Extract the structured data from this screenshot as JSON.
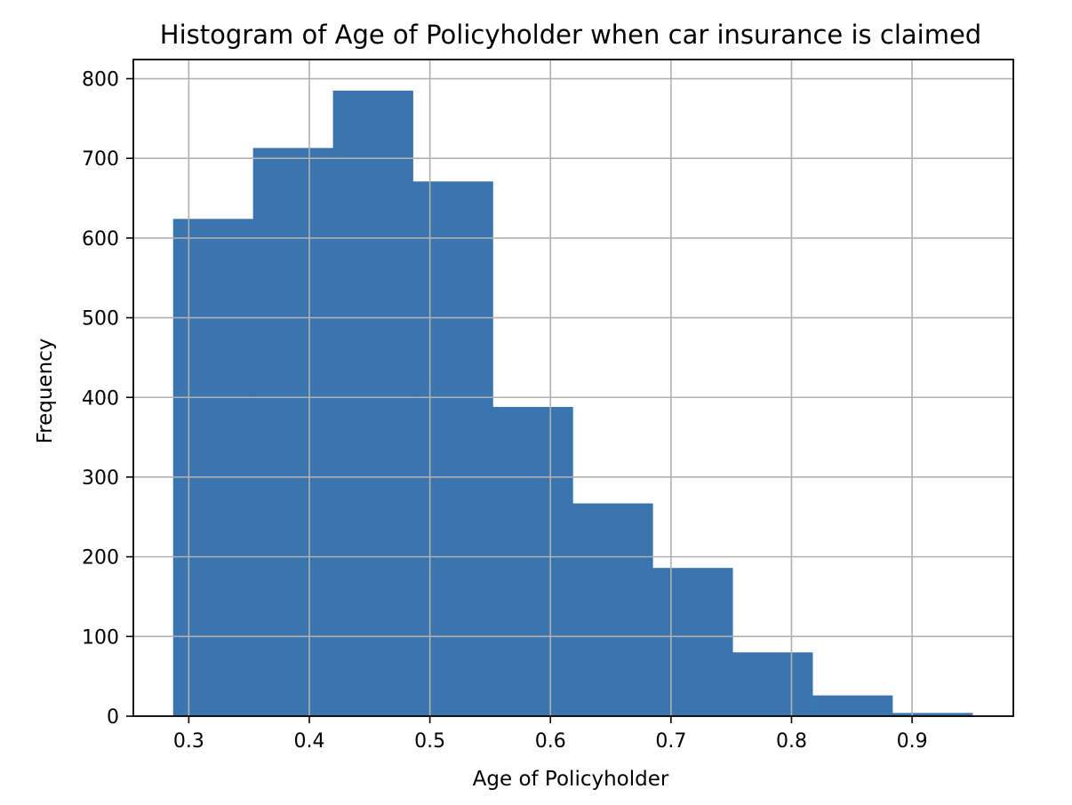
{
  "chart_data": {
    "type": "bar",
    "title": "Histogram of Age of Policyholder when car insurance is claimed",
    "xlabel": "Age of Policyholder",
    "ylabel": "Frequency",
    "xlim": [
      0.254,
      0.984
    ],
    "ylim": [
      0,
      824
    ],
    "xticks": [
      0.3,
      0.4,
      0.5,
      0.6,
      0.7,
      0.8,
      0.9
    ],
    "xtick_labels": [
      "0.3",
      "0.4",
      "0.5",
      "0.6",
      "0.7",
      "0.8",
      "0.9"
    ],
    "yticks": [
      0,
      100,
      200,
      300,
      400,
      500,
      600,
      700,
      800
    ],
    "ytick_labels": [
      "0",
      "100",
      "200",
      "300",
      "400",
      "500",
      "600",
      "700",
      "800"
    ],
    "grid": true,
    "bin_edges": [
      0.287,
      0.3533,
      0.4196,
      0.4859,
      0.5522,
      0.6185,
      0.6848,
      0.7511,
      0.8174,
      0.8837,
      0.95
    ],
    "values": [
      624,
      713,
      785,
      671,
      388,
      267,
      186,
      80,
      26,
      4
    ],
    "colors": {
      "bar": "#3a75af",
      "grid": "#b0b0b0",
      "axes": "#000000"
    }
  }
}
